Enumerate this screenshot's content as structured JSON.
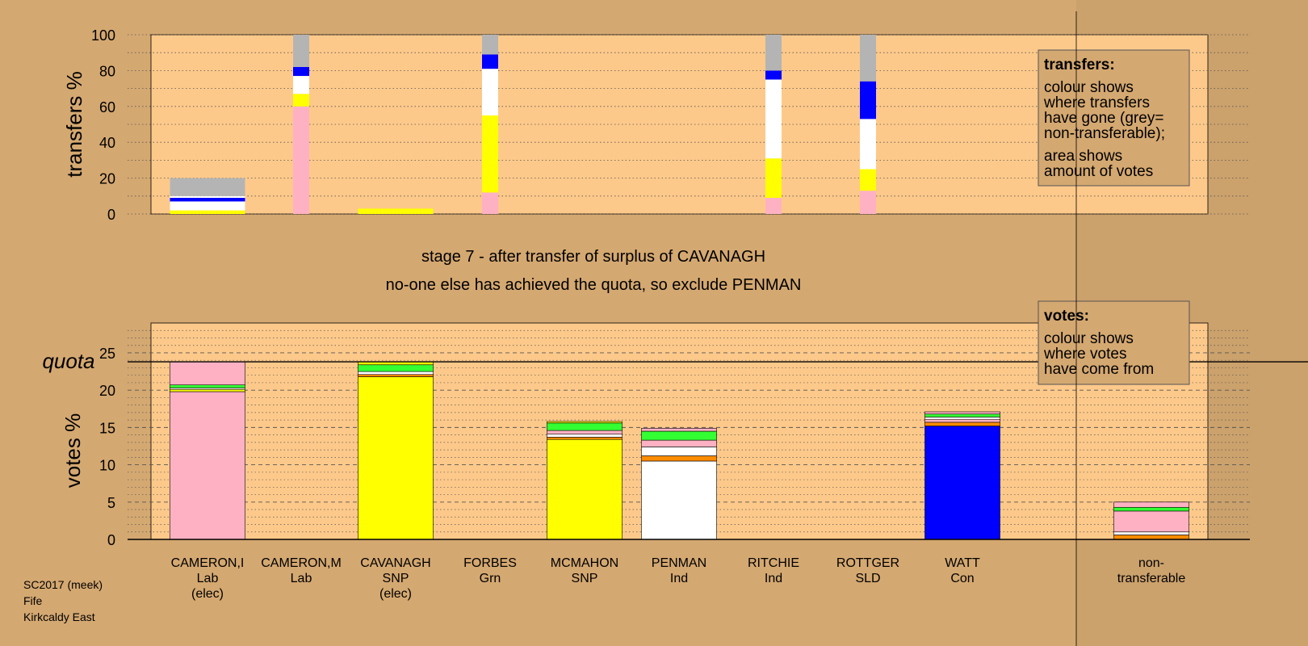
{
  "colors": {
    "background": "#d4a871",
    "plot_bg": "#fdc98a",
    "Lab": "#ffb1c4",
    "SNP": "#ffff00",
    "Grn": "#33ff33",
    "Ind": "#ffffff",
    "Con": "#0000ff",
    "SLD": "#ff8c00",
    "nontransferable": "#b4b4b4"
  },
  "chart_data": [
    {
      "type": "bar",
      "subtype": "stacked-transfer-strips",
      "ylabel": "transfers %",
      "ylim": [
        0,
        100
      ],
      "yticks": [
        0,
        20,
        40,
        60,
        80,
        100
      ],
      "grid": "dotted",
      "categories": [
        "CAMERON,I",
        "CAMERON,M",
        "CAVANAGH",
        "FORBES",
        "MCMAHON",
        "PENMAN",
        "RITCHIE",
        "ROTTGER",
        "WATT",
        "non-transferable"
      ],
      "bars": [
        {
          "category": "CAMERON,I",
          "width": "wide",
          "segments": [
            {
              "party": "SNP",
              "from": 0,
              "to": 2
            },
            {
              "party": "Ind",
              "from": 2,
              "to": 7
            },
            {
              "party": "Con",
              "from": 7,
              "to": 9
            },
            {
              "party": "Ind",
              "from": 9,
              "to": 10
            },
            {
              "party": "nontransferable",
              "from": 10,
              "to": 20
            }
          ]
        },
        {
          "category": "CAMERON,M",
          "width": "narrow",
          "segments": [
            {
              "party": "Lab",
              "from": 0,
              "to": 60
            },
            {
              "party": "SNP",
              "from": 60,
              "to": 67
            },
            {
              "party": "Ind",
              "from": 67,
              "to": 77
            },
            {
              "party": "Con",
              "from": 77,
              "to": 82
            },
            {
              "party": "nontransferable",
              "from": 82,
              "to": 100
            }
          ]
        },
        {
          "category": "CAVANAGH",
          "width": "wide",
          "segments": [
            {
              "party": "SNP",
              "from": 0,
              "to": 3
            }
          ]
        },
        {
          "category": "FORBES",
          "width": "narrow",
          "segments": [
            {
              "party": "Lab",
              "from": 0,
              "to": 12
            },
            {
              "party": "SNP",
              "from": 12,
              "to": 55
            },
            {
              "party": "Ind",
              "from": 55,
              "to": 81
            },
            {
              "party": "Con",
              "from": 81,
              "to": 89
            },
            {
              "party": "nontransferable",
              "from": 89,
              "to": 100
            }
          ]
        },
        {
          "category": "RITCHIE",
          "width": "narrow",
          "segments": [
            {
              "party": "Lab",
              "from": 0,
              "to": 9
            },
            {
              "party": "SNP",
              "from": 9,
              "to": 31
            },
            {
              "party": "Ind",
              "from": 31,
              "to": 75
            },
            {
              "party": "Con",
              "from": 75,
              "to": 80
            },
            {
              "party": "nontransferable",
              "from": 80,
              "to": 100
            }
          ]
        },
        {
          "category": "ROTTGER",
          "width": "narrow",
          "segments": [
            {
              "party": "Lab",
              "from": 0,
              "to": 13
            },
            {
              "party": "SNP",
              "from": 13,
              "to": 25
            },
            {
              "party": "Ind",
              "from": 25,
              "to": 53
            },
            {
              "party": "Con",
              "from": 53,
              "to": 74
            },
            {
              "party": "nontransferable",
              "from": 74,
              "to": 100
            }
          ]
        }
      ],
      "legend": {
        "title": "transfers:",
        "lines1": [
          "colour shows",
          "where transfers",
          "have gone (grey=",
          "non-transferable);"
        ],
        "lines2": [
          "area shows",
          "amount of votes"
        ]
      }
    },
    {
      "type": "bar",
      "subtype": "stacked",
      "ylabel": "votes %",
      "ylim": [
        0,
        29
      ],
      "yticks": [
        0,
        5,
        10,
        15,
        20,
        25
      ],
      "quota": 23.8,
      "quota_label": "quota",
      "grid": "dashed",
      "categories": [
        "CAMERON,I",
        "CAMERON,M",
        "CAVANAGH",
        "FORBES",
        "MCMAHON",
        "PENMAN",
        "RITCHIE",
        "ROTTGER",
        "WATT",
        "non-transferable"
      ],
      "candidates": [
        {
          "name": "CAMERON,I",
          "party": "Lab",
          "status": "(elec)"
        },
        {
          "name": "CAMERON,M",
          "party": "Lab",
          "status": ""
        },
        {
          "name": "CAVANAGH",
          "party": "SNP",
          "status": "(elec)"
        },
        {
          "name": "FORBES",
          "party": "Grn",
          "status": ""
        },
        {
          "name": "MCMAHON",
          "party": "SNP",
          "status": ""
        },
        {
          "name": "PENMAN",
          "party": "Ind",
          "status": ""
        },
        {
          "name": "RITCHIE",
          "party": "Ind",
          "status": ""
        },
        {
          "name": "ROTTGER",
          "party": "SLD",
          "status": ""
        },
        {
          "name": "WATT",
          "party": "Con",
          "status": ""
        },
        {
          "name": "non-",
          "party": "transferable",
          "status": ""
        }
      ],
      "bars": [
        {
          "category": "CAMERON,I",
          "segments": [
            {
              "party": "Lab",
              "value": 19.8
            },
            {
              "party": "SNP",
              "value": 0.3
            },
            {
              "party": "Ind",
              "value": 0.2
            },
            {
              "party": "Grn",
              "value": 0.4
            },
            {
              "party": "Lab",
              "value": 3.1
            }
          ]
        },
        {
          "category": "CAVANAGH",
          "segments": [
            {
              "party": "SNP",
              "value": 21.8
            },
            {
              "party": "SLD",
              "value": 0.3
            },
            {
              "party": "Ind",
              "value": 0.4
            },
            {
              "party": "Grn",
              "value": 0.9
            },
            {
              "party": "SNP",
              "value": 0.4
            }
          ]
        },
        {
          "category": "MCMAHON",
          "segments": [
            {
              "party": "SNP",
              "value": 13.4
            },
            {
              "party": "SLD",
              "value": 0.3
            },
            {
              "party": "Ind",
              "value": 0.4
            },
            {
              "party": "Lab",
              "value": 0.5
            },
            {
              "party": "Grn",
              "value": 1.0
            },
            {
              "party": "SNP",
              "value": 0.2
            }
          ]
        },
        {
          "category": "PENMAN",
          "segments": [
            {
              "party": "Ind",
              "value": 10.5
            },
            {
              "party": "SLD",
              "value": 0.7
            },
            {
              "party": "Ind",
              "value": 1.2
            },
            {
              "party": "Lab",
              "value": 0.9
            },
            {
              "party": "Grn",
              "value": 1.2
            },
            {
              "party": "Lab",
              "value": 0.4
            }
          ]
        },
        {
          "category": "WATT",
          "segments": [
            {
              "party": "Con",
              "value": 15.2
            },
            {
              "party": "SLD",
              "value": 0.5
            },
            {
              "party": "Lab",
              "value": 0.4
            },
            {
              "party": "Ind",
              "value": 0.3
            },
            {
              "party": "Grn",
              "value": 0.4
            },
            {
              "party": "Lab",
              "value": 0.3
            }
          ]
        },
        {
          "category": "non-transferable",
          "segments": [
            {
              "party": "SLD",
              "value": 0.6
            },
            {
              "party": "Ind",
              "value": 0.4
            },
            {
              "party": "Lab",
              "value": 2.8
            },
            {
              "party": "Grn",
              "value": 0.5
            },
            {
              "party": "Lab",
              "value": 0.7
            }
          ]
        }
      ],
      "legend": {
        "title": "votes:",
        "lines": [
          "colour shows",
          "where votes",
          "have come from"
        ]
      }
    }
  ],
  "stage": {
    "line1": "stage 7 - after transfer of surplus of CAVANAGH",
    "line2": "no-one else has achieved the quota, so exclude PENMAN"
  },
  "footer": {
    "line1": "SC2017 (meek)",
    "line2": "Fife",
    "line3": "Kirkcaldy East"
  }
}
